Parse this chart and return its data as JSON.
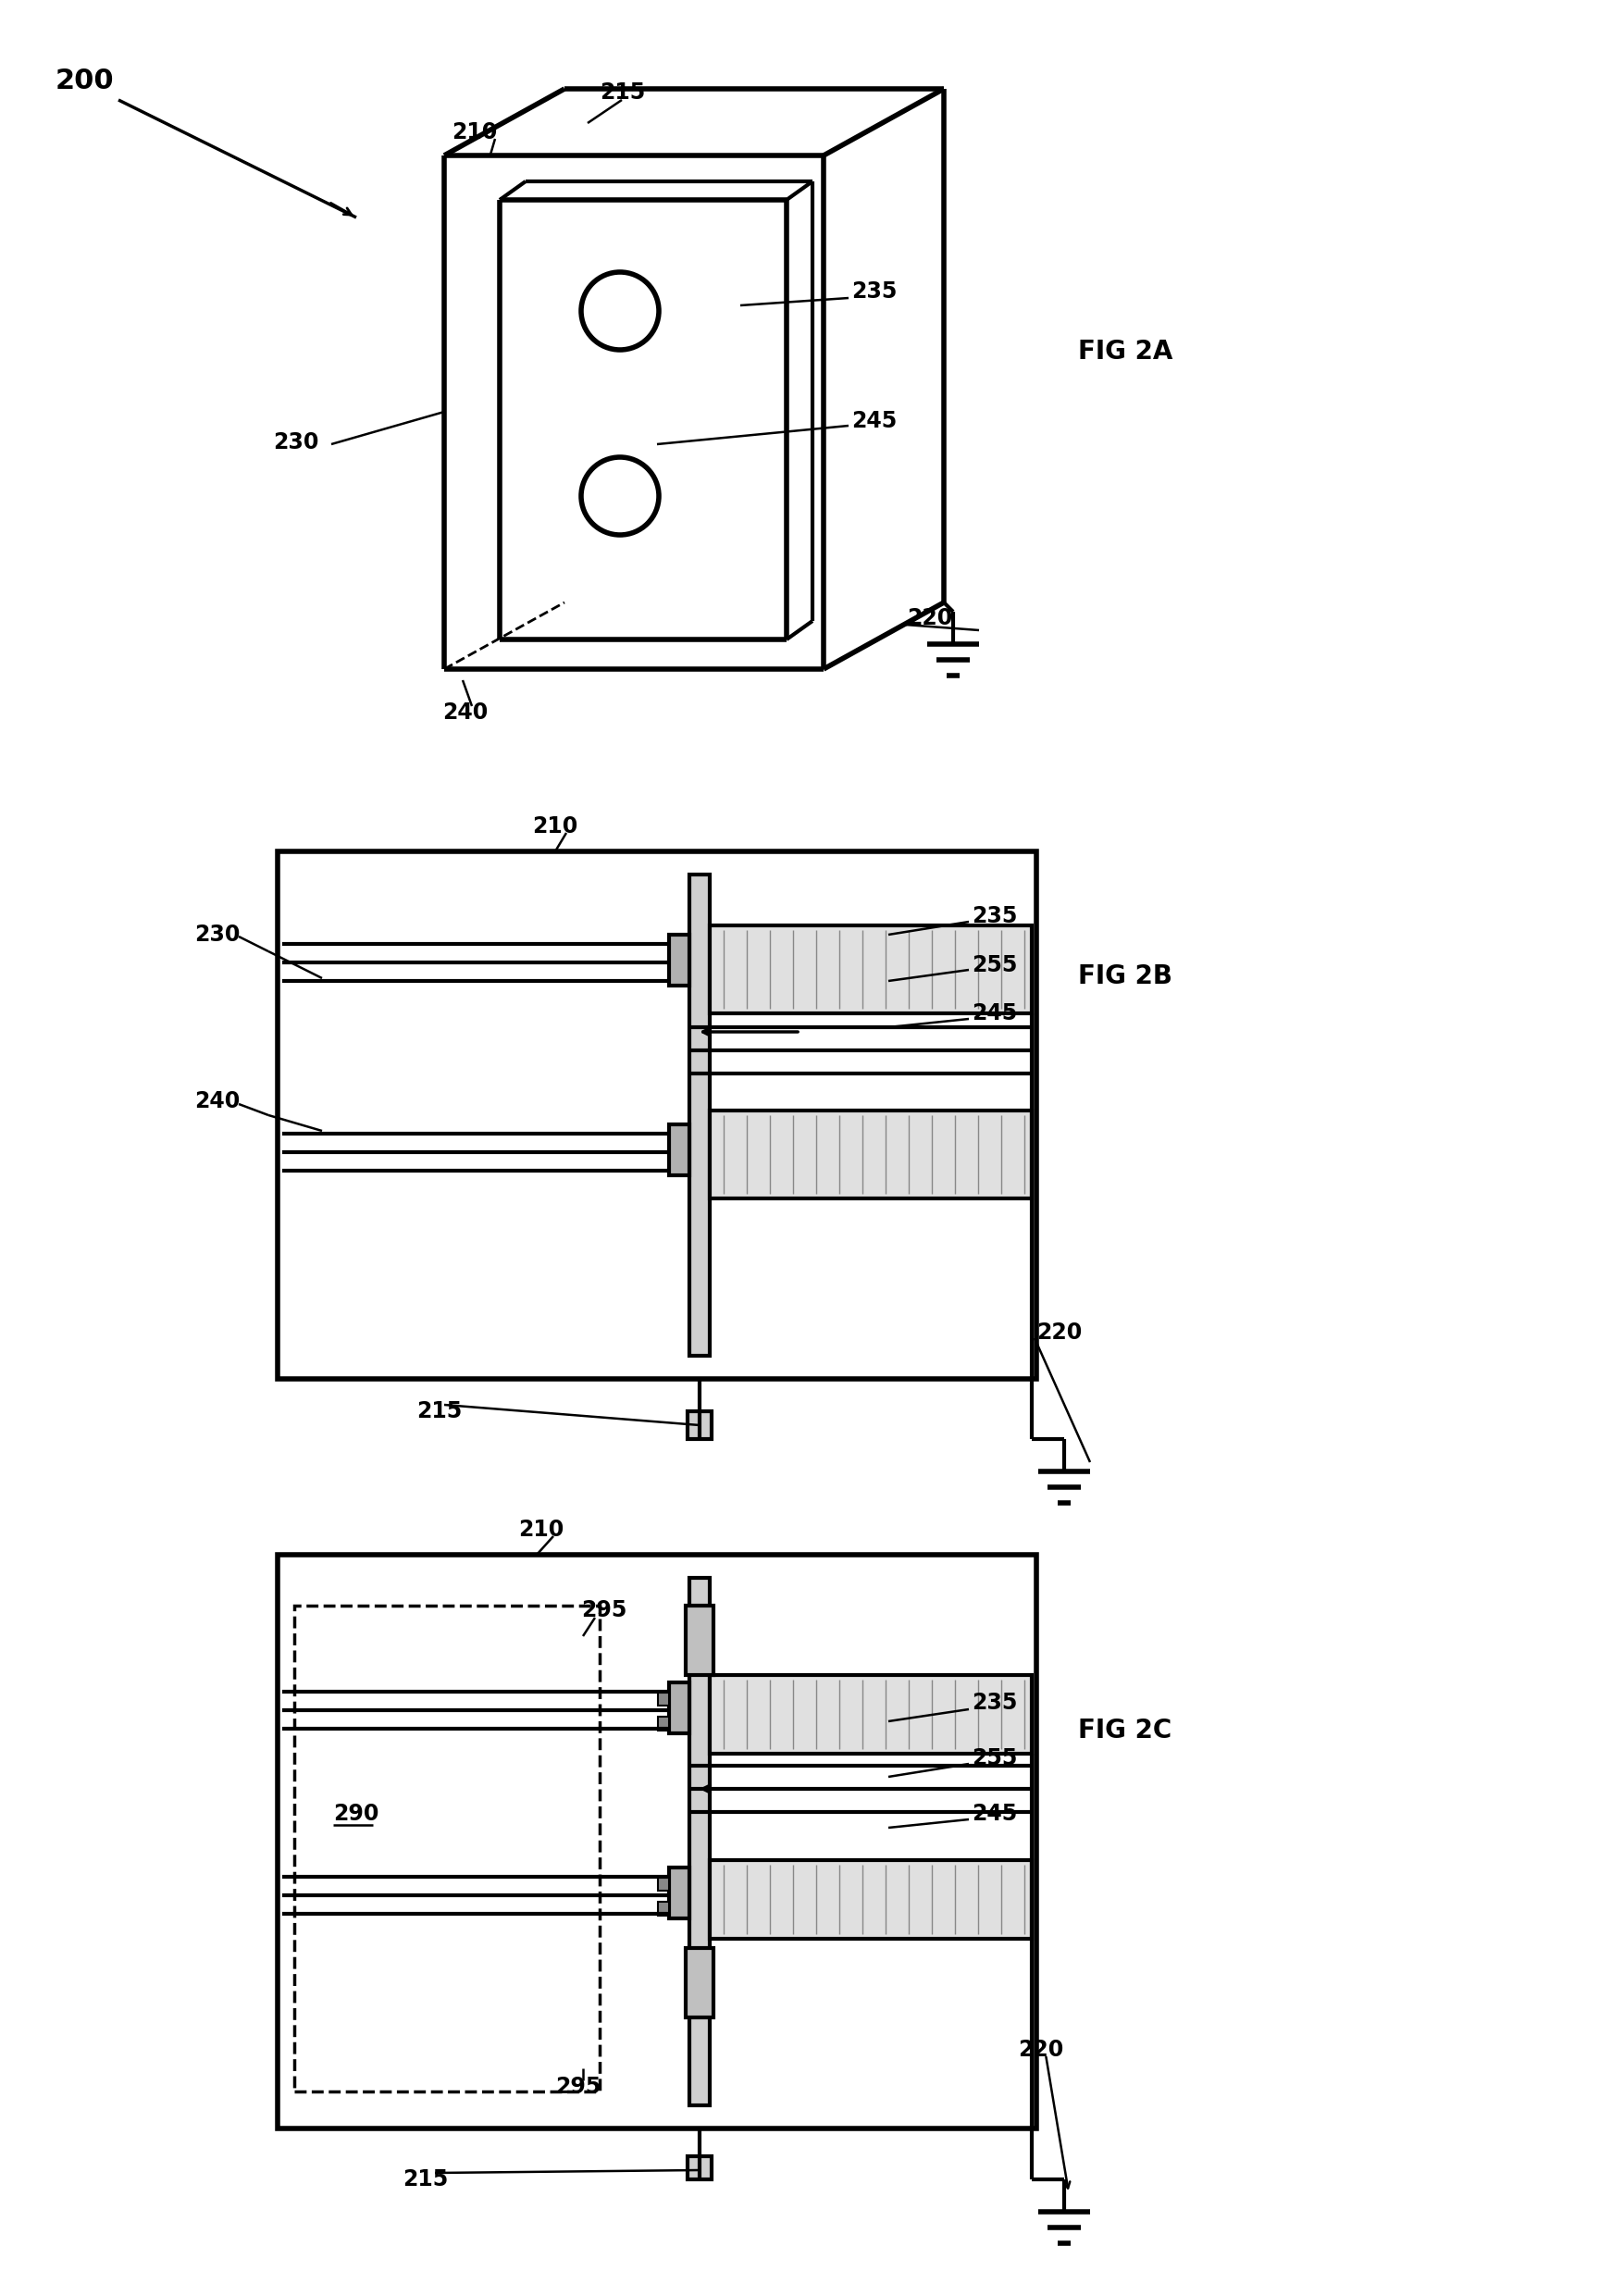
{
  "bg_color": "#ffffff",
  "line_color": "#000000",
  "fig_width": 17.55,
  "fig_height": 24.54,
  "label_200": "200",
  "label_210": "210",
  "label_215": "215",
  "label_220": "220",
  "label_230": "230",
  "label_235": "235",
  "label_240": "240",
  "label_245": "245",
  "label_255": "255",
  "label_290": "290",
  "label_295": "295",
  "fig2a_label": "FIG 2A",
  "fig2b_label": "FIG 2B",
  "fig2c_label": "FIG 2C"
}
